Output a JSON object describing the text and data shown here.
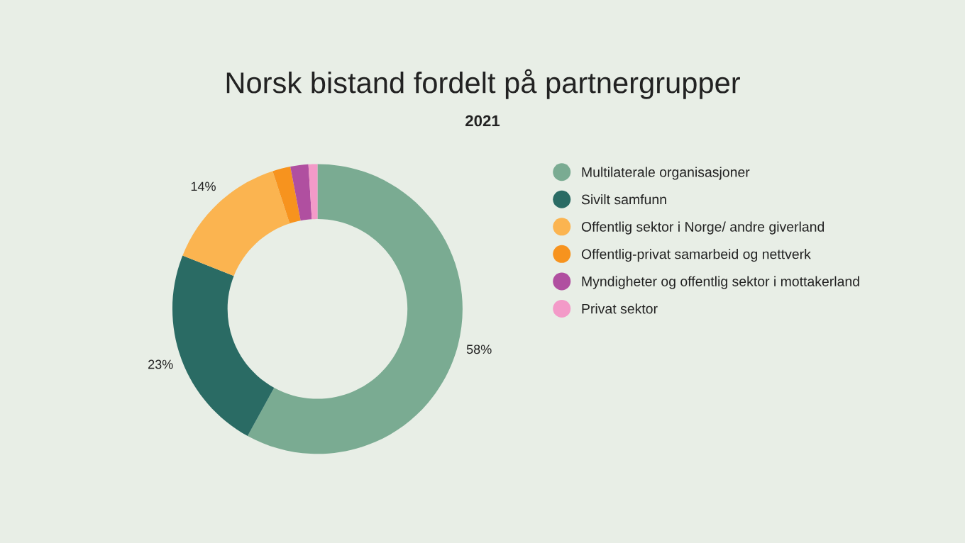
{
  "chart_data": {
    "type": "donut",
    "title": "Norsk bistand fordelt på partnergrupper",
    "subtitle": "2021",
    "categories": [
      "Multilaterale organisasjoner",
      "Sivilt samfunn",
      "Offentlig sektor i Norge/ andre giverland",
      "Offentlig-privat samarbeid og nettverk",
      "Myndigheter og offentlig sektor i mottakerland",
      "Privat sektor"
    ],
    "values": [
      58,
      23,
      14,
      2,
      2,
      1
    ],
    "colors": [
      "#7aab92",
      "#2a6b64",
      "#fbb450",
      "#f7931e",
      "#b04fa0",
      "#f39ac8"
    ],
    "value_labels": [
      "58%",
      "23%",
      "14%",
      null,
      null,
      null
    ],
    "legend": "right"
  }
}
